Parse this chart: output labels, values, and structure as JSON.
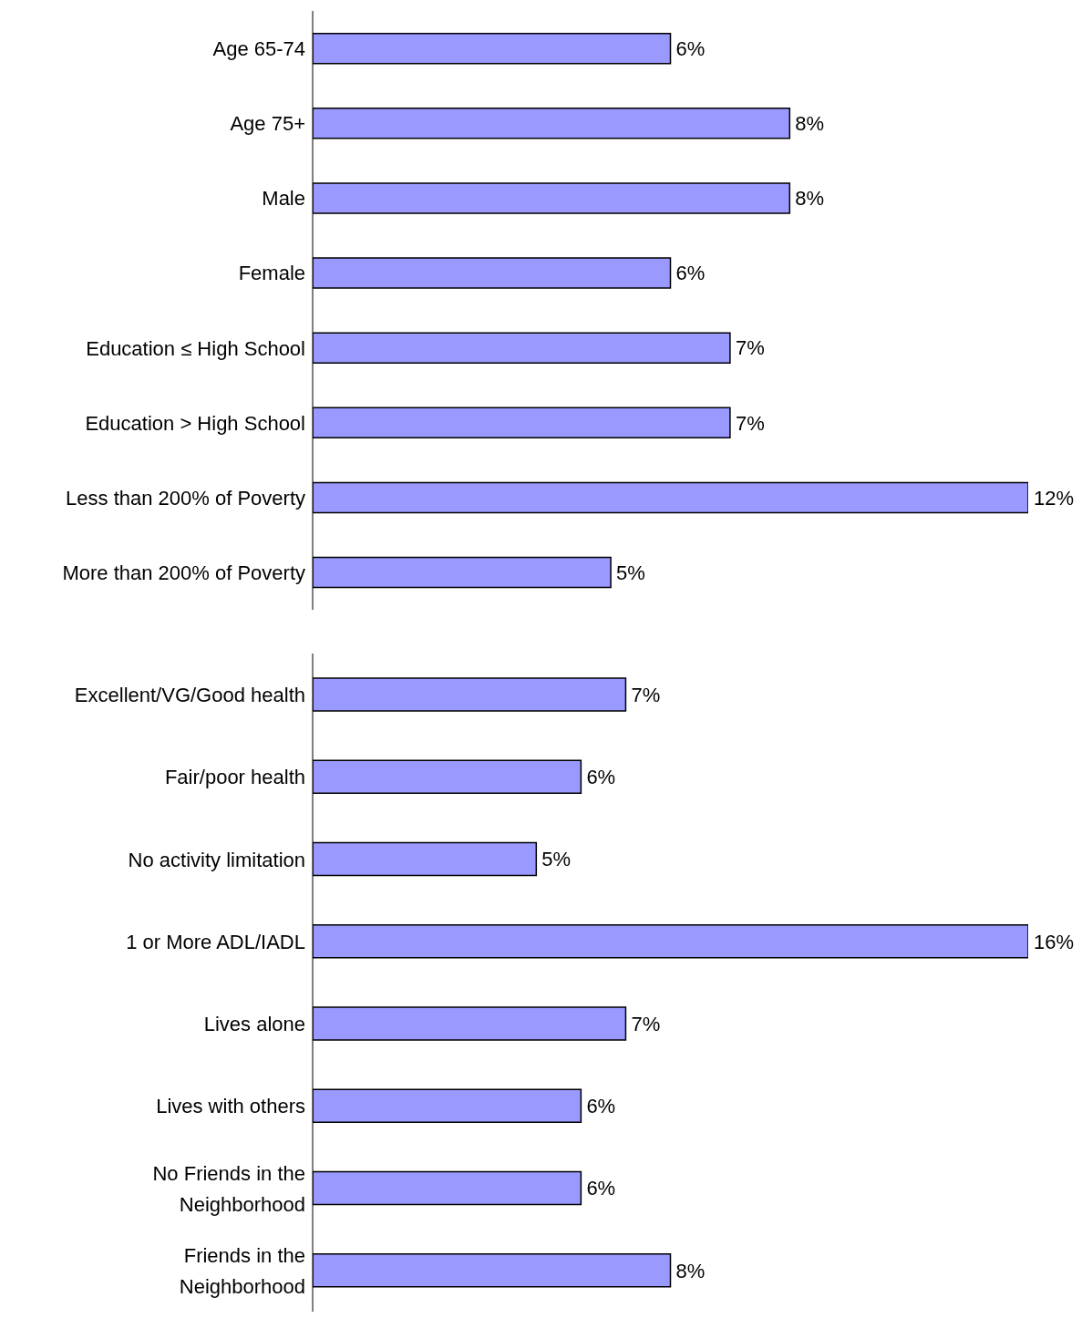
{
  "chart_data": [
    {
      "type": "bar",
      "orientation": "horizontal",
      "categories": [
        "Age 65-74",
        "Age 75+",
        "Male",
        "Female",
        "Education ≤ High School",
        "Education > High School",
        "Less than 200% of Poverty",
        "More than 200% of Poverty"
      ],
      "values": [
        6,
        8,
        8,
        6,
        7,
        7,
        12,
        5
      ],
      "value_labels": [
        "6%",
        "8%",
        "8%",
        "6%",
        "7%",
        "7%",
        "12%",
        "5%"
      ],
      "color": "#9999ff",
      "grid": false,
      "legend": false,
      "tick_labels": "y"
    },
    {
      "type": "bar",
      "orientation": "horizontal",
      "categories": [
        "Excellent/VG/Good health",
        "Fair/poor health",
        "No activity limitation",
        "1 or More ADL/IADL",
        "Lives alone",
        "Lives with others",
        "No Friends in the Neighborhood",
        "Friends in the Neighborhood"
      ],
      "values": [
        7,
        6,
        5,
        16,
        7,
        6,
        6,
        8
      ],
      "value_labels": [
        "7%",
        "6%",
        "5%",
        "16%",
        "7%",
        "6%",
        "6%",
        "8%"
      ],
      "color": "#9999ff",
      "grid": false,
      "legend": false,
      "tick_labels": "y"
    }
  ]
}
